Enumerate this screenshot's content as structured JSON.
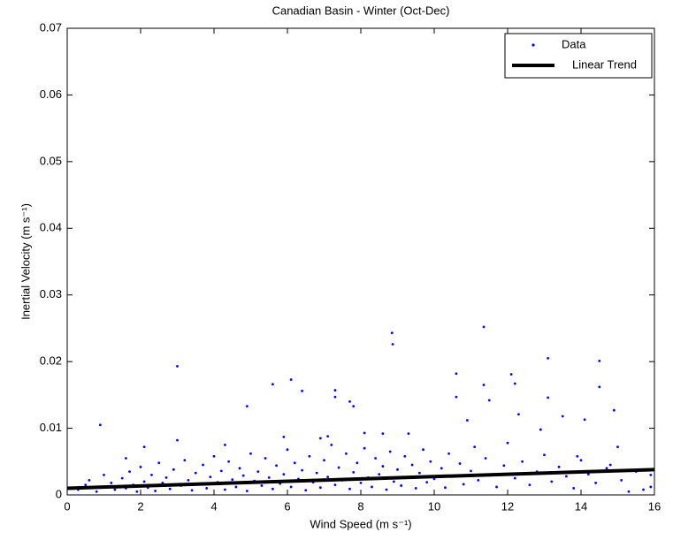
{
  "chart_data": {
    "type": "scatter",
    "title": "Canadian Basin - Winter (Oct-Dec)",
    "x_label": "Wind Speed (m s⁻¹)",
    "y_label": "Inertial Velocity (m s⁻¹)",
    "xlim": [
      0,
      16
    ],
    "ylim": [
      0,
      0.07
    ],
    "xticks": [
      0,
      2,
      4,
      6,
      8,
      10,
      12,
      14,
      16
    ],
    "yticks": [
      0,
      0.01,
      0.02,
      0.03,
      0.04,
      0.05,
      0.06,
      0.07
    ],
    "legend": "upper right",
    "series": [
      {
        "name": "Data",
        "color": "#0000ff",
        "mode": "markers",
        "x": [
          0.9,
          3.0,
          3.0,
          4.9,
          5.6,
          6.1,
          6.4,
          7.3,
          7.3,
          7.7,
          7.8,
          8.85,
          8.87,
          10.6,
          10.6,
          11.35,
          11.35,
          11.5,
          12.1,
          12.2,
          12.3,
          13.1,
          13.1,
          13.5,
          14.1,
          14.5,
          14.5,
          14.9,
          15.0,
          12.9,
          10.9,
          9.3,
          8.1,
          8.6,
          7.1,
          6.9,
          5.9,
          4.3,
          2.1,
          1.6,
          15.9,
          15.9,
          15.3,
          15.7,
          14.8,
          13.9,
          0.3,
          0.5,
          0.6,
          0.8,
          1.0,
          1.1,
          1.2,
          1.3,
          1.5,
          1.6,
          1.7,
          1.8,
          1.9,
          2.0,
          2.1,
          2.2,
          2.3,
          2.4,
          2.5,
          2.6,
          2.7,
          2.8,
          2.9,
          3.1,
          3.2,
          3.3,
          3.4,
          3.5,
          3.6,
          3.7,
          3.8,
          3.9,
          4.0,
          4.1,
          4.2,
          4.3,
          4.4,
          4.5,
          4.6,
          4.7,
          4.8,
          4.9,
          5.0,
          5.1,
          5.2,
          5.3,
          5.4,
          5.5,
          5.6,
          5.7,
          5.8,
          5.9,
          6.0,
          6.1,
          6.2,
          6.3,
          6.4,
          6.5,
          6.6,
          6.7,
          6.8,
          6.9,
          7.0,
          7.1,
          7.2,
          7.3,
          7.4,
          7.5,
          7.6,
          7.7,
          7.8,
          7.9,
          8.0,
          8.1,
          8.2,
          8.3,
          8.4,
          8.5,
          8.6,
          8.7,
          8.8,
          8.9,
          9.0,
          9.1,
          9.2,
          9.3,
          9.4,
          9.5,
          9.6,
          9.7,
          9.8,
          9.9,
          10.0,
          10.2,
          10.3,
          10.4,
          10.5,
          10.7,
          10.8,
          11.0,
          11.1,
          11.2,
          11.4,
          11.6,
          11.7,
          11.9,
          12.0,
          12.2,
          12.4,
          12.6,
          12.8,
          13.0,
          13.2,
          13.4,
          13.6,
          13.8,
          14.0,
          14.2,
          14.4,
          14.7,
          15.1,
          15.5
        ],
        "values": [
          0.0105,
          0.0193,
          0.0082,
          0.0133,
          0.0166,
          0.0173,
          0.0156,
          0.0157,
          0.0147,
          0.014,
          0.0133,
          0.0243,
          0.0226,
          0.0182,
          0.0147,
          0.0252,
          0.0165,
          0.0142,
          0.0181,
          0.0167,
          0.0121,
          0.0205,
          0.0146,
          0.0118,
          0.0113,
          0.0201,
          0.0162,
          0.0127,
          0.0072,
          0.0098,
          0.0112,
          0.0092,
          0.0093,
          0.0092,
          0.0088,
          0.0085,
          0.0087,
          0.0075,
          0.0072,
          0.0055,
          0.003,
          0.0012,
          0.0005,
          0.0008,
          0.0045,
          0.0058,
          0.0008,
          0.0015,
          0.0022,
          0.0005,
          0.003,
          0.0012,
          0.0018,
          0.0008,
          0.0025,
          0.001,
          0.0035,
          0.0015,
          0.0005,
          0.0042,
          0.002,
          0.0011,
          0.003,
          0.0006,
          0.0048,
          0.0018,
          0.0026,
          0.0009,
          0.0038,
          0.0014,
          0.0052,
          0.0022,
          0.0007,
          0.0033,
          0.0017,
          0.0045,
          0.001,
          0.0027,
          0.0058,
          0.0019,
          0.0036,
          0.0008,
          0.005,
          0.0023,
          0.0012,
          0.004,
          0.0029,
          0.0006,
          0.0062,
          0.0021,
          0.0035,
          0.0014,
          0.0055,
          0.0026,
          0.0009,
          0.0044,
          0.0017,
          0.0031,
          0.0068,
          0.0012,
          0.0048,
          0.0024,
          0.0037,
          0.0007,
          0.0058,
          0.0019,
          0.0033,
          0.0011,
          0.0052,
          0.0027,
          0.0075,
          0.0015,
          0.0041,
          0.0022,
          0.0062,
          0.0009,
          0.0034,
          0.0048,
          0.0018,
          0.007,
          0.0026,
          0.0012,
          0.0055,
          0.0031,
          0.0043,
          0.0008,
          0.0065,
          0.002,
          0.0038,
          0.0014,
          0.0058,
          0.0027,
          0.0045,
          0.001,
          0.0033,
          0.0068,
          0.0019,
          0.005,
          0.0024,
          0.004,
          0.0011,
          0.0062,
          0.0029,
          0.0047,
          0.0016,
          0.0036,
          0.0072,
          0.0022,
          0.0055,
          0.003,
          0.0012,
          0.0044,
          0.0078,
          0.0025,
          0.005,
          0.0015,
          0.0035,
          0.006,
          0.002,
          0.0042,
          0.0028,
          0.001,
          0.0052,
          0.0031,
          0.0018,
          0.004,
          0.0022,
          0.0035
        ]
      },
      {
        "name": "Linear Trend",
        "color": "#000000",
        "mode": "lines",
        "x": [
          0,
          16
        ],
        "values": [
          0.001,
          0.0038
        ]
      }
    ]
  }
}
